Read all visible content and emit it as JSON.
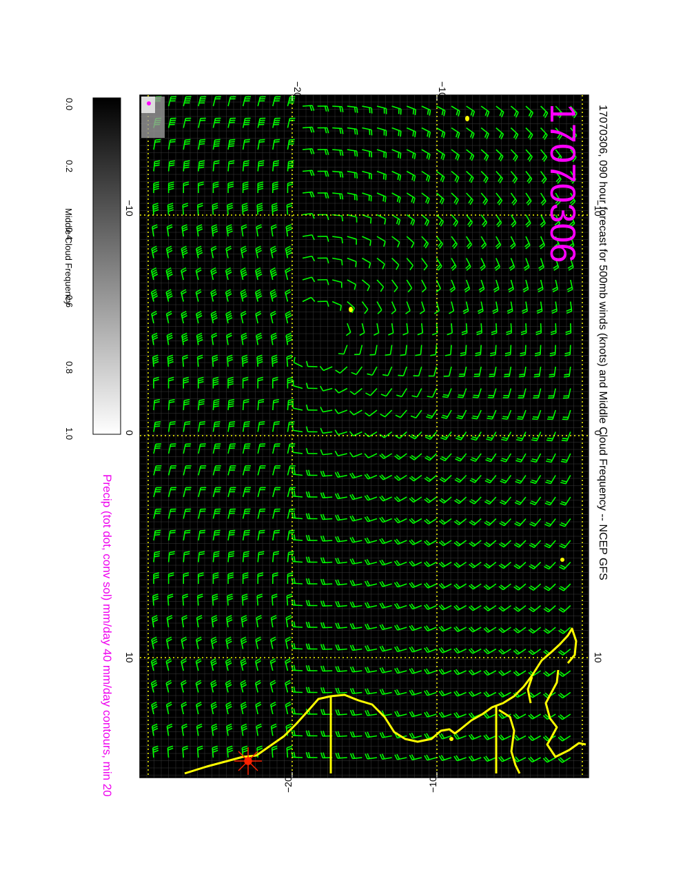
{
  "title": "17070306, 090 hour forecast for 500mb winds (knots) and Middle Cloud Frequency -- NCEP GFS",
  "date_stamp": "17070306",
  "precip_note": "Precip (tot dot, conv sol) mm/day 40 mm/day contours, min 20",
  "colorbar": {
    "label": "Middle Cloud Frequency",
    "ticks": [
      "0.0",
      "0.2",
      "0.4",
      "0.6",
      "0.8",
      "1.0"
    ]
  },
  "axes": {
    "lat_ticks": [
      "−20",
      "−10"
    ],
    "lon_ticks": [
      "−10",
      "0",
      "10"
    ]
  },
  "colors": {
    "background": "#000000",
    "barbs": "#00ff00",
    "coast": "#ffff00",
    "grid": "#ffff00",
    "stamp": "#ff00ff",
    "precip_note": "#ee00ee",
    "storm_marker": "#ff2200"
  }
}
